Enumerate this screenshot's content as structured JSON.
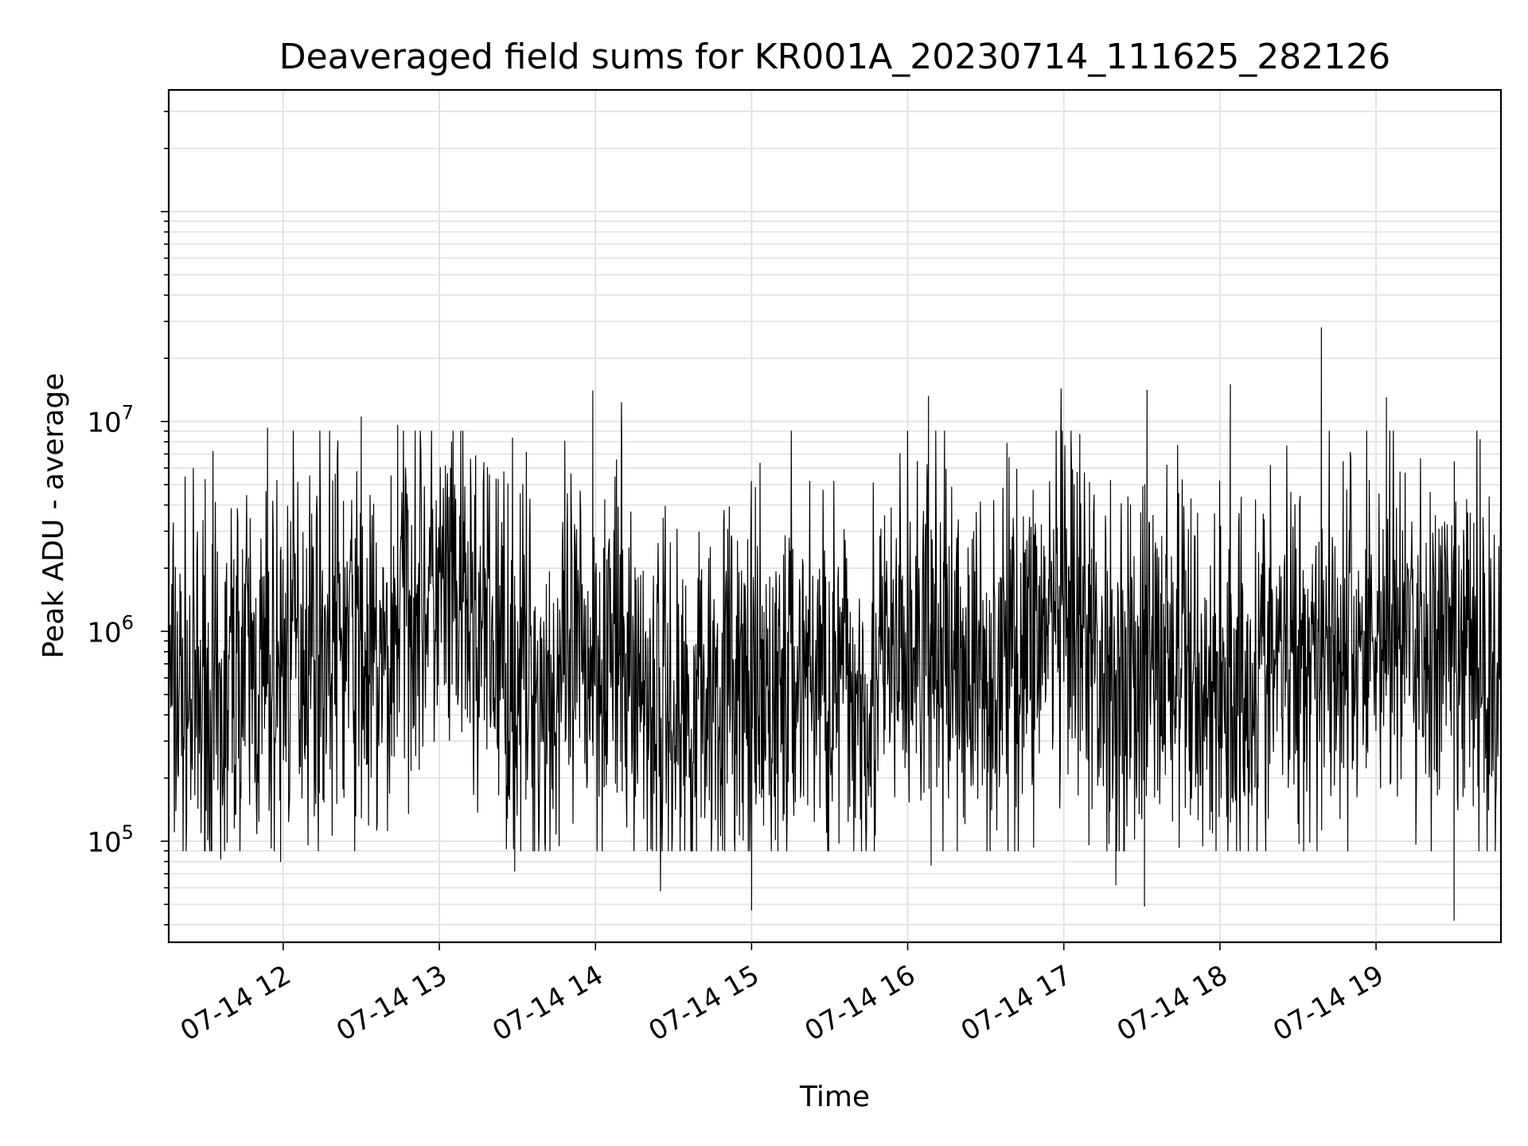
{
  "chart_data": {
    "type": "line",
    "title": "Deaveraged field sums for KR001A_20230714_111625_282126",
    "xlabel": "Time",
    "ylabel": "Peak ADU - average",
    "xscale": "time",
    "yscale": "log",
    "xlim": [
      "2023-07-14 11:16",
      "2023-07-14 19:48"
    ],
    "ylim": [
      33000,
      380000000
    ],
    "x_ticks": [
      "07-14 12",
      "07-14 13",
      "07-14 14",
      "07-14 15",
      "07-14 16",
      "07-14 17",
      "07-14 18",
      "07-14 19"
    ],
    "y_ticks": [
      {
        "base": "10",
        "exp": "5",
        "value": 100000
      },
      {
        "base": "10",
        "exp": "6",
        "value": 1000000
      },
      {
        "base": "10",
        "exp": "7",
        "value": 10000000
      }
    ],
    "grid": true,
    "line_color": "#000000",
    "series": [
      {
        "x": [
          "2023-07-14 11:20",
          "2023-07-14 11:25",
          "2023-07-14 11:30",
          "2023-07-14 11:35",
          "2023-07-14 11:40",
          "2023-07-14 11:45",
          "2023-07-14 11:50",
          "2023-07-14 11:55",
          "2023-07-14 12:00",
          "2023-07-14 12:05",
          "2023-07-14 12:10",
          "2023-07-14 12:15",
          "2023-07-14 12:20",
          "2023-07-14 12:25",
          "2023-07-14 12:30",
          "2023-07-14 12:35",
          "2023-07-14 12:40",
          "2023-07-14 12:45",
          "2023-07-14 12:50",
          "2023-07-14 12:55",
          "2023-07-14 13:00",
          "2023-07-14 13:05",
          "2023-07-14 13:10",
          "2023-07-14 13:15",
          "2023-07-14 13:20",
          "2023-07-14 13:25",
          "2023-07-14 13:30",
          "2023-07-14 13:35",
          "2023-07-14 13:40",
          "2023-07-14 13:45",
          "2023-07-14 13:50",
          "2023-07-14 13:55",
          "2023-07-14 14:00",
          "2023-07-14 14:05",
          "2023-07-14 14:10",
          "2023-07-14 14:15",
          "2023-07-14 14:20",
          "2023-07-14 14:25",
          "2023-07-14 14:30",
          "2023-07-14 14:35",
          "2023-07-14 14:40",
          "2023-07-14 14:45",
          "2023-07-14 14:50",
          "2023-07-14 14:55",
          "2023-07-14 15:00",
          "2023-07-14 15:05",
          "2023-07-14 15:10",
          "2023-07-14 15:15",
          "2023-07-14 15:20",
          "2023-07-14 15:25",
          "2023-07-14 15:30",
          "2023-07-14 15:35",
          "2023-07-14 15:40",
          "2023-07-14 15:45",
          "2023-07-14 15:50",
          "2023-07-14 15:55",
          "2023-07-14 16:00",
          "2023-07-14 16:05",
          "2023-07-14 16:10",
          "2023-07-14 16:15",
          "2023-07-14 16:20",
          "2023-07-14 16:25",
          "2023-07-14 16:30",
          "2023-07-14 16:35",
          "2023-07-14 16:40",
          "2023-07-14 16:45",
          "2023-07-14 16:50",
          "2023-07-14 16:55",
          "2023-07-14 17:00",
          "2023-07-14 17:05",
          "2023-07-14 17:10",
          "2023-07-14 17:15",
          "2023-07-14 17:20",
          "2023-07-14 17:25",
          "2023-07-14 17:30",
          "2023-07-14 17:35",
          "2023-07-14 17:40",
          "2023-07-14 17:45",
          "2023-07-14 17:50",
          "2023-07-14 17:55",
          "2023-07-14 18:00",
          "2023-07-14 18:05",
          "2023-07-14 18:10",
          "2023-07-14 18:15",
          "2023-07-14 18:20",
          "2023-07-14 18:25",
          "2023-07-14 18:30",
          "2023-07-14 18:35",
          "2023-07-14 18:40",
          "2023-07-14 18:45",
          "2023-07-14 18:50",
          "2023-07-14 18:55",
          "2023-07-14 19:00",
          "2023-07-14 19:05",
          "2023-07-14 19:10",
          "2023-07-14 19:15",
          "2023-07-14 19:20",
          "2023-07-14 19:25",
          "2023-07-14 19:30",
          "2023-07-14 19:35",
          "2023-07-14 19:40",
          "2023-07-14 19:45"
        ],
        "y": [
          500000,
          450000,
          400000,
          300000,
          600000,
          700000,
          600000,
          500000,
          800000,
          900000,
          1000000,
          800000,
          1000000,
          900000,
          700000,
          600000,
          600000,
          1500000,
          1800000,
          1600000,
          1400000,
          1300000,
          1200000,
          1000000,
          900000,
          800000,
          700000,
          600000,
          500000,
          500000,
          600000,
          700000,
          800000,
          900000,
          700000,
          600000,
          500000,
          450000,
          400000,
          400000,
          500000,
          550000,
          600000,
          500000,
          450000,
          400000,
          500000,
          600000,
          700000,
          650000,
          600000,
          550000,
          500000,
          550000,
          600000,
          700000,
          800000,
          850000,
          900000,
          800000,
          700000,
          650000,
          600000,
          700000,
          800000,
          900000,
          1000000,
          1100000,
          1000000,
          900000,
          800000,
          700000,
          600000,
          650000,
          700000,
          750000,
          800000,
          700000,
          600000,
          550000,
          500000,
          550000,
          600000,
          650000,
          700000,
          750000,
          800000,
          900000,
          1000000,
          900000,
          800000,
          900000,
          1000000,
          1100000,
          1000000,
          900000,
          800000,
          700000,
          750000,
          800000,
          700000,
          600000
        ],
        "spikes": [
          {
            "x": "2023-07-14 11:30",
            "y": 5300000
          },
          {
            "x": "2023-07-14 11:33",
            "y": 7200000
          },
          {
            "x": "2023-07-14 11:36",
            "y": 82000
          },
          {
            "x": "2023-07-14 11:54",
            "y": 9300000
          },
          {
            "x": "2023-07-14 11:59",
            "y": 80000
          },
          {
            "x": "2023-07-14 12:30",
            "y": 10500000
          },
          {
            "x": "2023-07-14 12:44",
            "y": 9600000
          },
          {
            "x": "2023-07-14 13:29",
            "y": 72000
          },
          {
            "x": "2023-07-14 13:59",
            "y": 14000000
          },
          {
            "x": "2023-07-14 14:10",
            "y": 12300000
          },
          {
            "x": "2023-07-14 14:25",
            "y": 58000
          },
          {
            "x": "2023-07-14 15:00",
            "y": 47000
          },
          {
            "x": "2023-07-14 16:08",
            "y": 13200000
          },
          {
            "x": "2023-07-14 16:09",
            "y": 77000
          },
          {
            "x": "2023-07-14 16:59",
            "y": 14300000
          },
          {
            "x": "2023-07-14 17:20",
            "y": 62000
          },
          {
            "x": "2023-07-14 17:31",
            "y": 49000
          },
          {
            "x": "2023-07-14 17:32",
            "y": 14100000
          },
          {
            "x": "2023-07-14 18:04",
            "y": 15000000
          },
          {
            "x": "2023-07-14 18:39",
            "y": 28000000
          },
          {
            "x": "2023-07-14 19:04",
            "y": 13000000
          },
          {
            "x": "2023-07-14 19:30",
            "y": 42000
          },
          {
            "x": "2023-07-14 19:40",
            "y": 8200000
          }
        ]
      }
    ]
  }
}
